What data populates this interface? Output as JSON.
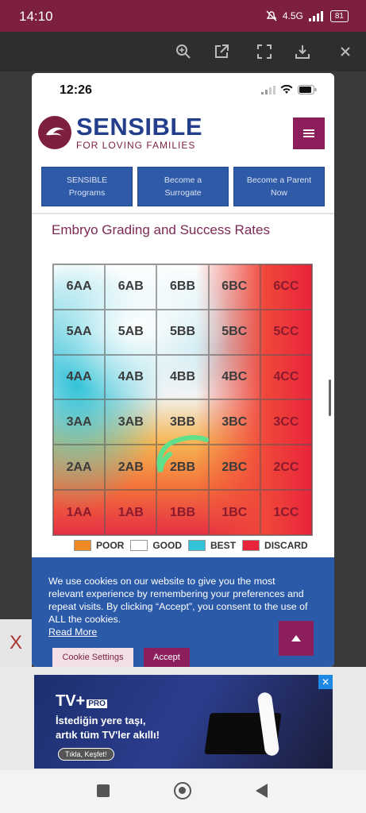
{
  "status_bar": {
    "time": "14:10",
    "network": "4.5G",
    "battery": "81"
  },
  "page": {
    "time": "12:26",
    "logo": {
      "main": "SENSIBLE",
      "sub": "FOR LOVING FAMILIES"
    },
    "nav": [
      {
        "line1": "SENSIBLE",
        "line2": "Programs"
      },
      {
        "line1": "Become a",
        "line2": "Surrogate"
      },
      {
        "line1": "Become a Parent",
        "line2": "Now"
      }
    ],
    "section_title": "Embryo Grading and Success Rates",
    "grid": [
      [
        "6AA",
        "6AB",
        "6BB",
        "6BC",
        "6CC"
      ],
      [
        "5AA",
        "5AB",
        "5BB",
        "5BC",
        "5CC"
      ],
      [
        "4AA",
        "4AB",
        "4BB",
        "4BC",
        "4CC"
      ],
      [
        "3AA",
        "3AB",
        "3BB",
        "3BC",
        "3CC"
      ],
      [
        "2AA",
        "2AB",
        "2BB",
        "2BC",
        "2CC"
      ],
      [
        "1AA",
        "1AB",
        "1BB",
        "1BC",
        "1CC"
      ]
    ],
    "legend": [
      {
        "label": "POOR",
        "color": "#f08a24"
      },
      {
        "label": "GOOD",
        "color": "#ffffff"
      },
      {
        "label": "BEST",
        "color": "#33c3d8"
      },
      {
        "label": "DISCARD",
        "color": "#e8243b"
      }
    ],
    "cookie": {
      "text": "We use cookies on our website to give you the most relevant experience by remembering your preferences and repeat visits. By clicking “Accept”, you consent to the use of ALL the cookies.",
      "link": "Read More",
      "settings": "Cookie Settings",
      "accept": "Accept"
    }
  },
  "close_label": "X",
  "ad": {
    "brand": "TV+",
    "brand_badge": "PRO",
    "line1": "İstediğin yere taşı,",
    "line2": "artık tüm TV'ler akıllı!",
    "cta": "Tıkla, Keşfet!",
    "close": "✕"
  },
  "colors": {
    "brand_maroon": "#7d1f3f",
    "brand_blue": "#2b5aa8"
  }
}
